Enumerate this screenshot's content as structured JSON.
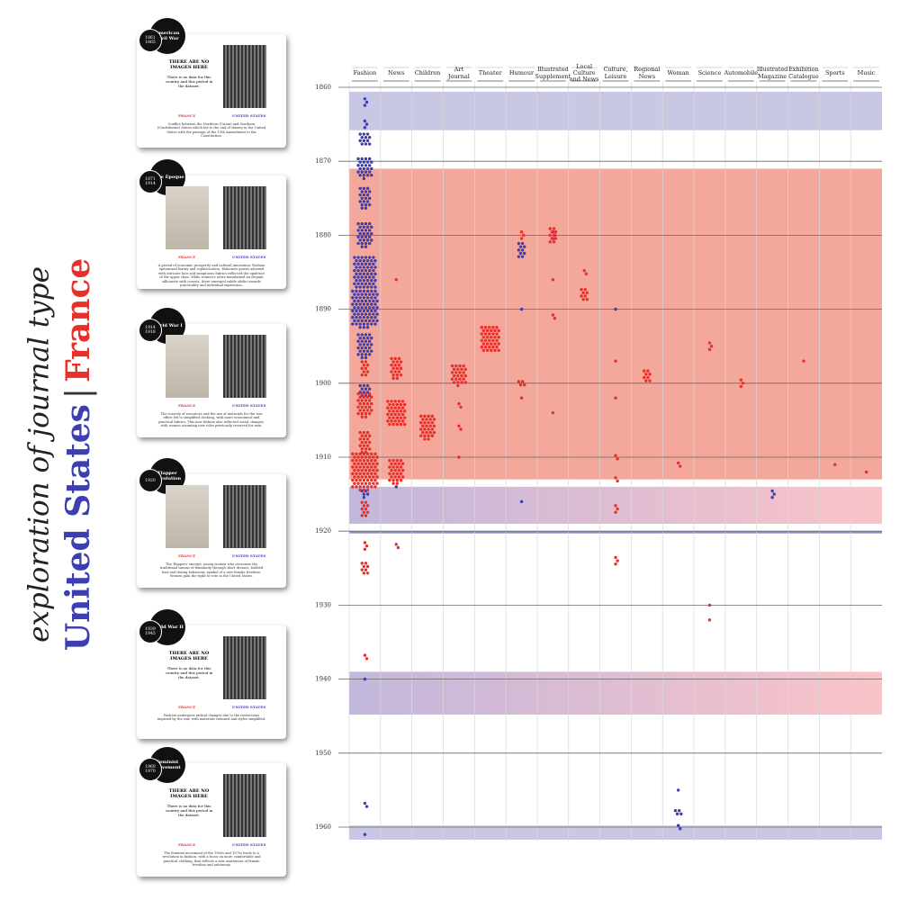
{
  "chart_data": {
    "type": "strip",
    "title": "exploration of journal type",
    "separator": "|",
    "categories": [
      "Fashion",
      "News",
      "Children",
      "Art Journal",
      "Theater",
      "Humour",
      "Illustrated Supplement",
      "Local Culture and News",
      "Culture, Leisure",
      "Regional News",
      "Woman",
      "Science",
      "Automobile",
      "Illustrated Magazine",
      "Exhibition Catalogue",
      "Sports",
      "Music"
    ],
    "ylim": [
      1860,
      1960
    ],
    "yticks": [
      1860,
      1870,
      1880,
      1890,
      1900,
      1910,
      1920,
      1930,
      1940,
      1950,
      1960
    ],
    "bands": [
      {
        "start": 1860.6,
        "end": 1865.8,
        "color": [
          "#c9c8e4",
          "#c9c8e4"
        ]
      },
      {
        "start": 1871,
        "end": 1913,
        "color": [
          "#f4a89b",
          "#f4a89b"
        ]
      },
      {
        "start": 1914,
        "end": 1919,
        "color": [
          "#c2b7dc",
          "#fbc3c8"
        ]
      },
      {
        "start": 1920,
        "end": 1920.3,
        "color": [
          "#8c8fd0",
          "#8c8fd0"
        ]
      },
      {
        "start": 1939,
        "end": 1944.8,
        "color": [
          "#c2b7dc",
          "#fbc3c8"
        ]
      },
      {
        "start": 1959.8,
        "end": 1961.7,
        "color": [
          "#c9c8e4",
          "#c9c8e4"
        ]
      }
    ],
    "series": [
      {
        "name": "United States",
        "color": "#3d3fb0",
        "points": [
          {
            "x": "Fashion",
            "y": 1862,
            "n": 3
          },
          {
            "x": "Fashion",
            "y": 1865,
            "n": 3
          },
          {
            "x": "Fashion",
            "y": 1867,
            "n": 12
          },
          {
            "x": "Fashion",
            "y": 1871,
            "n": 25
          },
          {
            "x": "Fashion",
            "y": 1875,
            "n": 20
          },
          {
            "x": "Fashion",
            "y": 1880,
            "n": 30
          },
          {
            "x": "Fashion",
            "y": 1885,
            "n": 60
          },
          {
            "x": "Fashion",
            "y": 1890,
            "n": 80
          },
          {
            "x": "Fashion",
            "y": 1895,
            "n": 30
          },
          {
            "x": "Fashion",
            "y": 1901,
            "n": 12
          },
          {
            "x": "Fashion",
            "y": 1915,
            "n": 5
          },
          {
            "x": "Fashion",
            "y": 1940,
            "n": 1
          },
          {
            "x": "Fashion",
            "y": 1957,
            "n": 2
          },
          {
            "x": "Fashion",
            "y": 1961,
            "n": 1
          },
          {
            "x": "Humour",
            "y": 1882,
            "n": 10
          },
          {
            "x": "Humour",
            "y": 1890,
            "n": 1
          },
          {
            "x": "Humour",
            "y": 1916,
            "n": 1
          },
          {
            "x": "Illustrated Supplement",
            "y": 1880,
            "n": 3
          },
          {
            "x": "Culture, Leisure",
            "y": 1890,
            "n": 1
          },
          {
            "x": "Illustrated Magazine",
            "y": 1915,
            "n": 3
          },
          {
            "x": "News",
            "y": 1914,
            "n": 1
          },
          {
            "x": "Woman",
            "y": 1955,
            "n": 1
          },
          {
            "x": "Woman",
            "y": 1958,
            "n": 4
          },
          {
            "x": "Woman",
            "y": 1960,
            "n": 2
          }
        ]
      },
      {
        "name": "France",
        "color": "#e8302a",
        "points": [
          {
            "x": "Fashion",
            "y": 1898,
            "n": 10
          },
          {
            "x": "Fashion",
            "y": 1903,
            "n": 30
          },
          {
            "x": "Fashion",
            "y": 1908,
            "n": 20
          },
          {
            "x": "Fashion",
            "y": 1912,
            "n": 80
          },
          {
            "x": "Fashion",
            "y": 1917,
            "n": 10
          },
          {
            "x": "Fashion",
            "y": 1922,
            "n": 3
          },
          {
            "x": "Fashion",
            "y": 1925,
            "n": 8
          },
          {
            "x": "Fashion",
            "y": 1937,
            "n": 2
          },
          {
            "x": "News",
            "y": 1886,
            "n": 1
          },
          {
            "x": "News",
            "y": 1898,
            "n": 20
          },
          {
            "x": "News",
            "y": 1904,
            "n": 40
          },
          {
            "x": "News",
            "y": 1912,
            "n": 30
          },
          {
            "x": "News",
            "y": 1922,
            "n": 2
          },
          {
            "x": "Children",
            "y": 1906,
            "n": 30
          },
          {
            "x": "Art Journal",
            "y": 1899,
            "n": 25
          },
          {
            "x": "Art Journal",
            "y": 1903,
            "n": 2
          },
          {
            "x": "Art Journal",
            "y": 1906,
            "n": 2
          },
          {
            "x": "Art Journal",
            "y": 1910,
            "n": 1
          },
          {
            "x": "Theater",
            "y": 1894,
            "n": 40
          },
          {
            "x": "Humour",
            "y": 1880,
            "n": 3
          },
          {
            "x": "Humour",
            "y": 1900,
            "n": 4
          },
          {
            "x": "Humour",
            "y": 1902,
            "n": 1
          },
          {
            "x": "Illustrated Supplement",
            "y": 1880,
            "n": 10
          },
          {
            "x": "Illustrated Supplement",
            "y": 1886,
            "n": 1
          },
          {
            "x": "Illustrated Supplement",
            "y": 1891,
            "n": 2
          },
          {
            "x": "Illustrated Supplement",
            "y": 1904,
            "n": 1
          },
          {
            "x": "Local Culture and News",
            "y": 1885,
            "n": 2
          },
          {
            "x": "Local Culture and News",
            "y": 1888,
            "n": 8
          },
          {
            "x": "Culture, Leisure",
            "y": 1897,
            "n": 1
          },
          {
            "x": "Culture, Leisure",
            "y": 1902,
            "n": 1
          },
          {
            "x": "Culture, Leisure",
            "y": 1910,
            "n": 2
          },
          {
            "x": "Culture, Leisure",
            "y": 1913,
            "n": 2
          },
          {
            "x": "Culture, Leisure",
            "y": 1917,
            "n": 3
          },
          {
            "x": "Culture, Leisure",
            "y": 1924,
            "n": 3
          },
          {
            "x": "Regional News",
            "y": 1899,
            "n": 8
          },
          {
            "x": "Woman",
            "y": 1911,
            "n": 2
          },
          {
            "x": "Science",
            "y": 1895,
            "n": 3
          },
          {
            "x": "Science",
            "y": 1930,
            "n": 1
          },
          {
            "x": "Science",
            "y": 1932,
            "n": 1
          },
          {
            "x": "Automobile",
            "y": 1900,
            "n": 3
          },
          {
            "x": "Exhibition Catalogue",
            "y": 1897,
            "n": 1
          },
          {
            "x": "Sports",
            "y": 1911,
            "n": 1
          },
          {
            "x": "Music",
            "y": 1912,
            "n": 1
          }
        ]
      }
    ]
  },
  "cards": [
    {
      "title": "American Civil War",
      "years": "1861 1865",
      "missing": {
        "heading": "THERE ARE NO IMAGES HERE",
        "text": "There is no data for this country and this period in the dataset."
      },
      "france": "FRANCE",
      "us": "UNITED STATES",
      "caption": "Conflict between the Northern (Union) and Southern (Confederate) States which led to the end of slavery in the United States with the passage of the 13th Amendment to the Constitution."
    },
    {
      "title": "Belle Époque",
      "years": "1871 1914",
      "france": "FRANCE",
      "us": "UNITED STATES",
      "caption": "A period of economic prosperity and cultural innovation. Fashion epitomized luxury and sophistication. Elaborate gowns adorned with intricate lace and sumptuous fabrics reflected the opulence of the upper class. While women's attire maintained an elegant silhouette with corsets, there emerged subtle shifts towards practicality and individual expression."
    },
    {
      "title": "World War I",
      "years": "1914 1918",
      "france": "FRANCE",
      "us": "UNITED STATES",
      "caption": "The scarcity of resources and the use of materials for the war effort led to simplified clothing, with more economical and practical fabrics. This new fashion also reflected social changes, with women assuming new roles previously reserved for men."
    },
    {
      "title": "Flapper Revolution",
      "years": "1920",
      "france": "FRANCE",
      "us": "UNITED STATES",
      "caption": "The 'flappers' emerge, young women who overcame the traditional canons of femininity through short dresses, bobbed hair and daring behaviour, symbol of a new female freedom. Women gain the right to vote in the United States."
    },
    {
      "title": "World War II",
      "years": "1939 1945",
      "missing": {
        "heading": "THERE ARE NO IMAGES HERE",
        "text": "There is no data for this country and this period in the dataset."
      },
      "france": "FRANCE",
      "us": "UNITED STATES",
      "caption": "Fashion undergoes radical changes due to the restrictions imposed by the war, with materials rationed and styles simplified."
    },
    {
      "title": "Feminist Movement",
      "years": "1960 1970",
      "missing": {
        "heading": "THERE ARE NO IMAGES HERE",
        "text": "There is no data for this country and this period in the dataset."
      },
      "france": "FRANCE",
      "us": "UNITED STATES",
      "caption": "The feminist movement of the 1960s and 1970s leads to a revolution in fashion, with a focus on more comfortable and practical clothing, that reflects a new awareness of female freedom and autonomy."
    }
  ]
}
